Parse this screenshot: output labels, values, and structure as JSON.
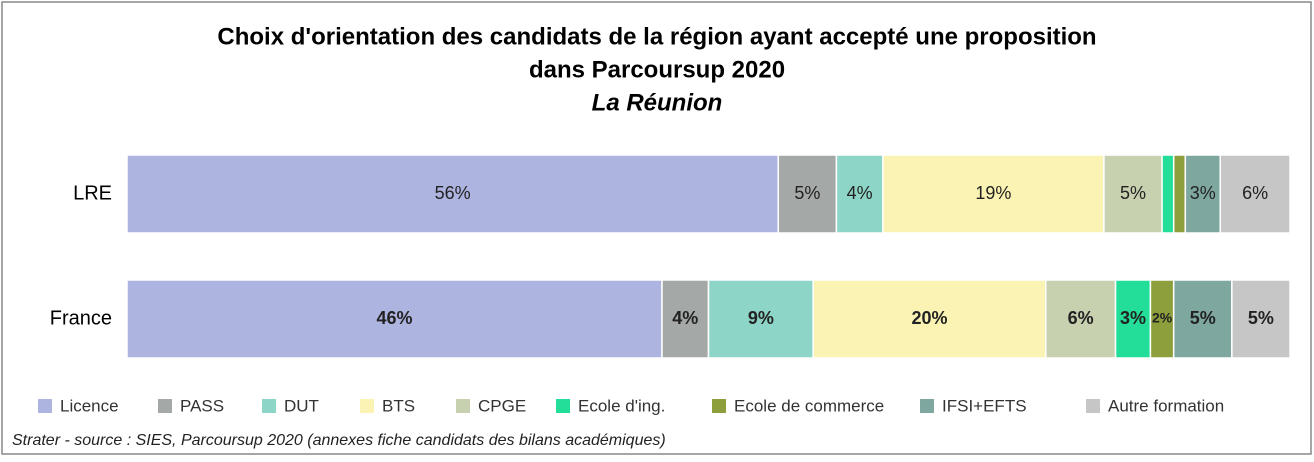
{
  "chart_data": {
    "type": "stacked-bar-horizontal",
    "title": [
      "Choix d'orientation des candidats de la région ayant accepté une proposition",
      "dans Parcoursup 2020"
    ],
    "subtitle": "La Réunion",
    "categories": [
      "LRE",
      "France"
    ],
    "xlim": [
      0,
      100
    ],
    "series": [
      {
        "name": "Licence",
        "color": "#aeb4e0",
        "values": [
          56,
          46
        ],
        "value_labels": [
          "56%",
          "46%"
        ]
      },
      {
        "name": "PASS",
        "color": "#a4a8a6",
        "values": [
          5,
          4
        ],
        "value_labels": [
          "5%",
          "4%"
        ]
      },
      {
        "name": "DUT",
        "color": "#8dd5c6",
        "values": [
          4,
          9
        ],
        "value_labels": [
          "4%",
          "9%"
        ]
      },
      {
        "name": "BTS",
        "color": "#fbf3b3",
        "values": [
          19,
          20
        ],
        "value_labels": [
          "19%",
          "20%"
        ]
      },
      {
        "name": "CPGE",
        "color": "#c7d1b0",
        "values": [
          5,
          6
        ],
        "value_labels": [
          "5%",
          "6%"
        ]
      },
      {
        "name": "Ecole d'ing.",
        "color": "#22de98",
        "values": [
          1,
          3
        ],
        "value_labels": [
          null,
          "3%"
        ]
      },
      {
        "name": "Ecole de commerce",
        "color": "#8d9f3c",
        "values": [
          1,
          2
        ],
        "value_labels": [
          null,
          "2%"
        ]
      },
      {
        "name": "IFSI+EFTS",
        "color": "#7ea7a0",
        "values": [
          3,
          5
        ],
        "value_labels": [
          "3%",
          "5%"
        ]
      },
      {
        "name": "Autre formation",
        "color": "#c6c6c6",
        "values": [
          6,
          5
        ],
        "value_labels": [
          "6%",
          "5%"
        ]
      }
    ],
    "source": "Strater - source : SIES, Parcoursup 2020 (annexes fiche candidats des bilans académiques)"
  }
}
